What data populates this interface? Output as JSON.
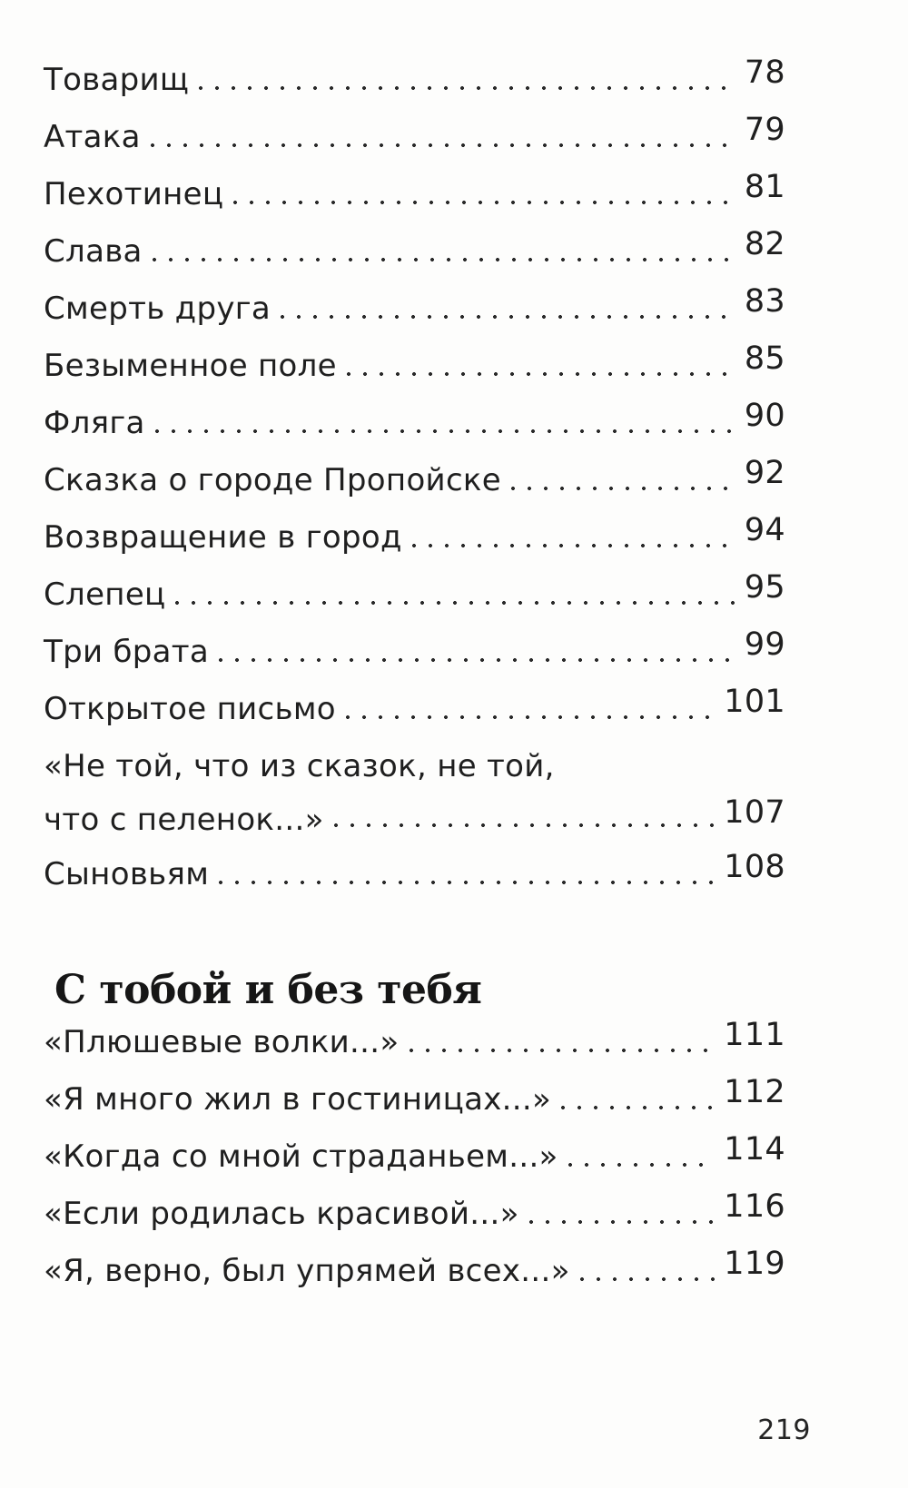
{
  "toc": {
    "section1": {
      "entries": [
        {
          "title": "Товарищ",
          "page": "78"
        },
        {
          "title": "Атака",
          "page": "79"
        },
        {
          "title": "Пехотинец",
          "page": "81"
        },
        {
          "title": "Слава",
          "page": "82"
        },
        {
          "title": "Смерть друга",
          "page": "83"
        },
        {
          "title": "Безыменное поле",
          "page": "85"
        },
        {
          "title": "Фляга",
          "page": "90"
        },
        {
          "title": "Сказка о городе Пропойске",
          "page": "92"
        },
        {
          "title": "Возвращение в город",
          "page": "94"
        },
        {
          "title": "Слепец",
          "page": "95"
        },
        {
          "title": "Три брата",
          "page": "99"
        },
        {
          "title": "Открытое письмо",
          "page": "101"
        },
        {
          "title": "«Не той, что из сказок, не той,",
          "title2": "что с пеленок...»",
          "page": "107"
        },
        {
          "title": "Сыновьям",
          "page": "108"
        }
      ]
    },
    "section2": {
      "heading": "С тобой и без тебя",
      "entries": [
        {
          "title": "«Плюшевые волки...»",
          "page": "111"
        },
        {
          "title": "«Я много жил в гостиницах...»",
          "page": "112"
        },
        {
          "title": "«Когда со мной страданьем...»",
          "page": "114"
        },
        {
          "title": "«Если родилась красивой...»",
          "page": "116"
        },
        {
          "title": "«Я, верно, был упрямей всех...»",
          "page": "119"
        }
      ]
    }
  },
  "footer": {
    "page_number": "219"
  }
}
